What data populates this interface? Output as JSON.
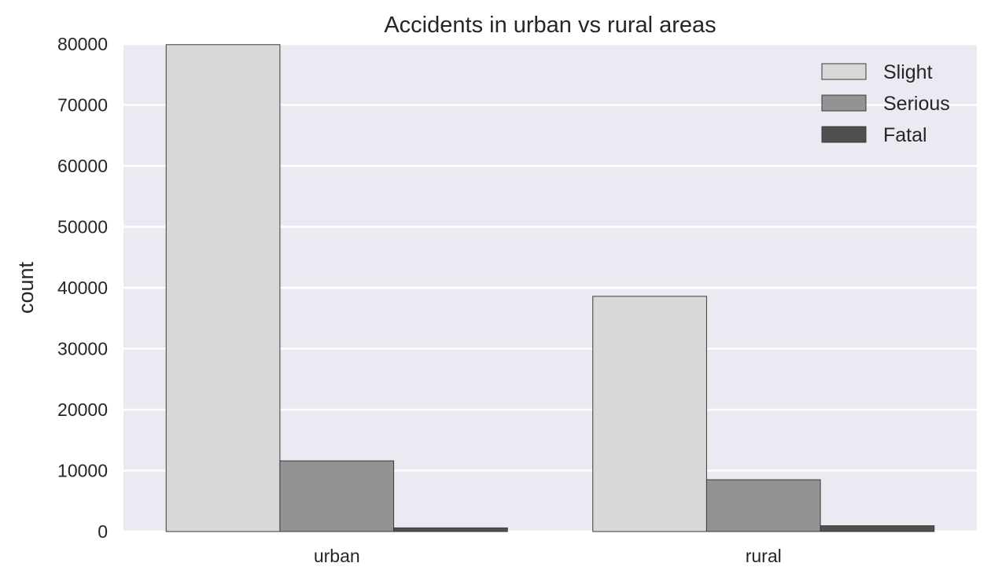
{
  "chart_data": {
    "type": "bar",
    "title": "Accidents in urban vs rural areas",
    "xlabel": "",
    "ylabel": "count",
    "categories": [
      "urban",
      "rural"
    ],
    "series": [
      {
        "name": "Slight",
        "values": [
          79900,
          38600
        ],
        "color": "#d8d8d8"
      },
      {
        "name": "Serious",
        "values": [
          11600,
          8500
        ],
        "color": "#939393"
      },
      {
        "name": "Fatal",
        "values": [
          600,
          950
        ],
        "color": "#4f4f4f"
      }
    ],
    "ylim": [
      0,
      80000
    ],
    "yticks": [
      0,
      10000,
      20000,
      30000,
      40000,
      50000,
      60000,
      70000,
      80000
    ],
    "grid": true,
    "legend_position": "top-right",
    "background_color": "#eaeaf2",
    "gridline_color": "#ffffff",
    "bar_edge_color": "#3a3a3a"
  }
}
